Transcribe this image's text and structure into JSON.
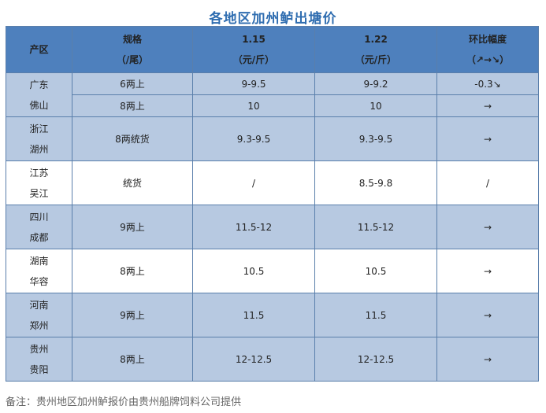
{
  "title": "各地区加州鲈出塘价",
  "header": {
    "region": "产区",
    "spec_line1": "规格",
    "spec_line2": "（/尾）",
    "date1": "1.15",
    "date1_unit": "（元/斤）",
    "date2": "1.22",
    "date2_unit": "（元/斤）",
    "change_line1": "环比幅度",
    "change_line2": "（↗→↘）"
  },
  "rows": [
    {
      "region1": "广东",
      "region2": "佛山",
      "spec1": "6两上",
      "p1a": "9-9.5",
      "p2a": "9-9.2",
      "ch1": "-0.3↘",
      "spec2": "8两上",
      "p1b": "10",
      "p2b": "10",
      "ch2": "→"
    },
    {
      "region1": "浙江",
      "region2": "湖州",
      "spec": "8两统货",
      "p1": "9.3-9.5",
      "p2": "9.3-9.5",
      "ch": "→"
    },
    {
      "region1": "江苏",
      "region2": "吴江",
      "spec": "统货",
      "p1": "/",
      "p2": "8.5-9.8",
      "ch": "/"
    },
    {
      "region1": "四川",
      "region2": "成都",
      "spec": "9两上",
      "p1": "11.5-12",
      "p2": "11.5-12",
      "ch": "→"
    },
    {
      "region1": "湖南",
      "region2": "华容",
      "spec": "8两上",
      "p1": "10.5",
      "p2": "10.5",
      "ch": "→"
    },
    {
      "region1": "河南",
      "region2": "郑州",
      "spec": "9两上",
      "p1": "11.5",
      "p2": "11.5",
      "ch": "→"
    },
    {
      "region1": "贵州",
      "region2": "贵阳",
      "spec": "8两上",
      "p1": "12-12.5",
      "p2": "12-12.5",
      "ch": "→"
    }
  ],
  "note": "备注：贵州地区加州鲈报价由贵州船牌饲料公司提供",
  "colors": {
    "header_bg": "#4e80bd",
    "row_shade": "#b7c9e1",
    "title": "#2f6db0",
    "down": "#1f9d55"
  }
}
